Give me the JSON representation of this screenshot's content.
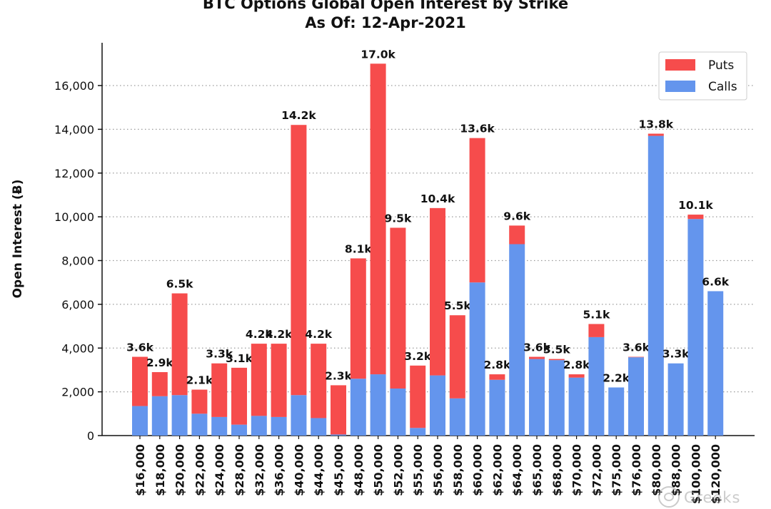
{
  "chart_data": {
    "type": "bar",
    "stacked": true,
    "title": "BTC Options Global Open Interest by Strike",
    "subtitle": "As Of: 12-Apr-2021",
    "xlabel": "",
    "ylabel": "Open Interest (Ƀ)",
    "ylim": [
      0,
      18000
    ],
    "yticks": [
      0,
      2000,
      4000,
      6000,
      8000,
      10000,
      12000,
      14000,
      16000
    ],
    "ytick_labels": [
      "0",
      "2,000",
      "4,000",
      "6,000",
      "8,000",
      "10,000",
      "12,000",
      "14,000",
      "16,000"
    ],
    "grid": "horizontal dotted",
    "legend_position": "top-right",
    "categories": [
      "$16,000",
      "$18,000",
      "$20,000",
      "$22,000",
      "$24,000",
      "$28,000",
      "$32,000",
      "$36,000",
      "$40,000",
      "$44,000",
      "$45,000",
      "$48,000",
      "$50,000",
      "$52,000",
      "$55,000",
      "$56,000",
      "$58,000",
      "$60,000",
      "$62,000",
      "$64,000",
      "$65,000",
      "$68,000",
      "$70,000",
      "$72,000",
      "$75,000",
      "$76,000",
      "$80,000",
      "$88,000",
      "$100,000",
      "$120,000"
    ],
    "series": [
      {
        "name": "Calls",
        "color": "#6495ED",
        "values": [
          1350,
          1800,
          1850,
          1000,
          850,
          500,
          900,
          850,
          1850,
          800,
          50,
          2600,
          2800,
          2150,
          350,
          2750,
          1700,
          7000,
          2550,
          8750,
          3500,
          3450,
          2650,
          4500,
          2200,
          3580,
          13700,
          3300,
          9900,
          6600
        ]
      },
      {
        "name": "Puts",
        "color": "#F64C4C",
        "values": [
          2250,
          1100,
          4650,
          1100,
          2450,
          2600,
          3300,
          3350,
          12350,
          3400,
          2250,
          5500,
          14200,
          7350,
          2850,
          7650,
          3800,
          6600,
          250,
          850,
          100,
          50,
          150,
          600,
          0,
          20,
          100,
          0,
          200,
          0
        ]
      }
    ],
    "totals": [
      3600,
      2900,
      6500,
      2100,
      3300,
      3100,
      4200,
      4200,
      14200,
      4200,
      2300,
      8100,
      17000,
      9500,
      3200,
      10400,
      5500,
      13600,
      2800,
      9600,
      3600,
      3500,
      2800,
      5100,
      2200,
      3600,
      13800,
      3300,
      10100,
      6600
    ],
    "total_labels": [
      "3.6k",
      "2.9k",
      "6.5k",
      "2.1k",
      "3.3k",
      "3.1k",
      "4.2k",
      "4.2k",
      "14.2k",
      "4.2k",
      "2.3k",
      "8.1k",
      "17.0k",
      "9.5k",
      "3.2k",
      "10.4k",
      "5.5k",
      "13.6k",
      "2.8k",
      "9.6k",
      "3.6k",
      "3.5k",
      "2.8k",
      "5.1k",
      "2.2k",
      "3.6k",
      "13.8k",
      "3.3k",
      "10.1k",
      "6.6k"
    ],
    "legend": [
      {
        "label": "Puts",
        "color": "#F64C4C"
      },
      {
        "label": "Calls",
        "color": "#6495ED"
      }
    ]
  },
  "watermark": "Greeks"
}
